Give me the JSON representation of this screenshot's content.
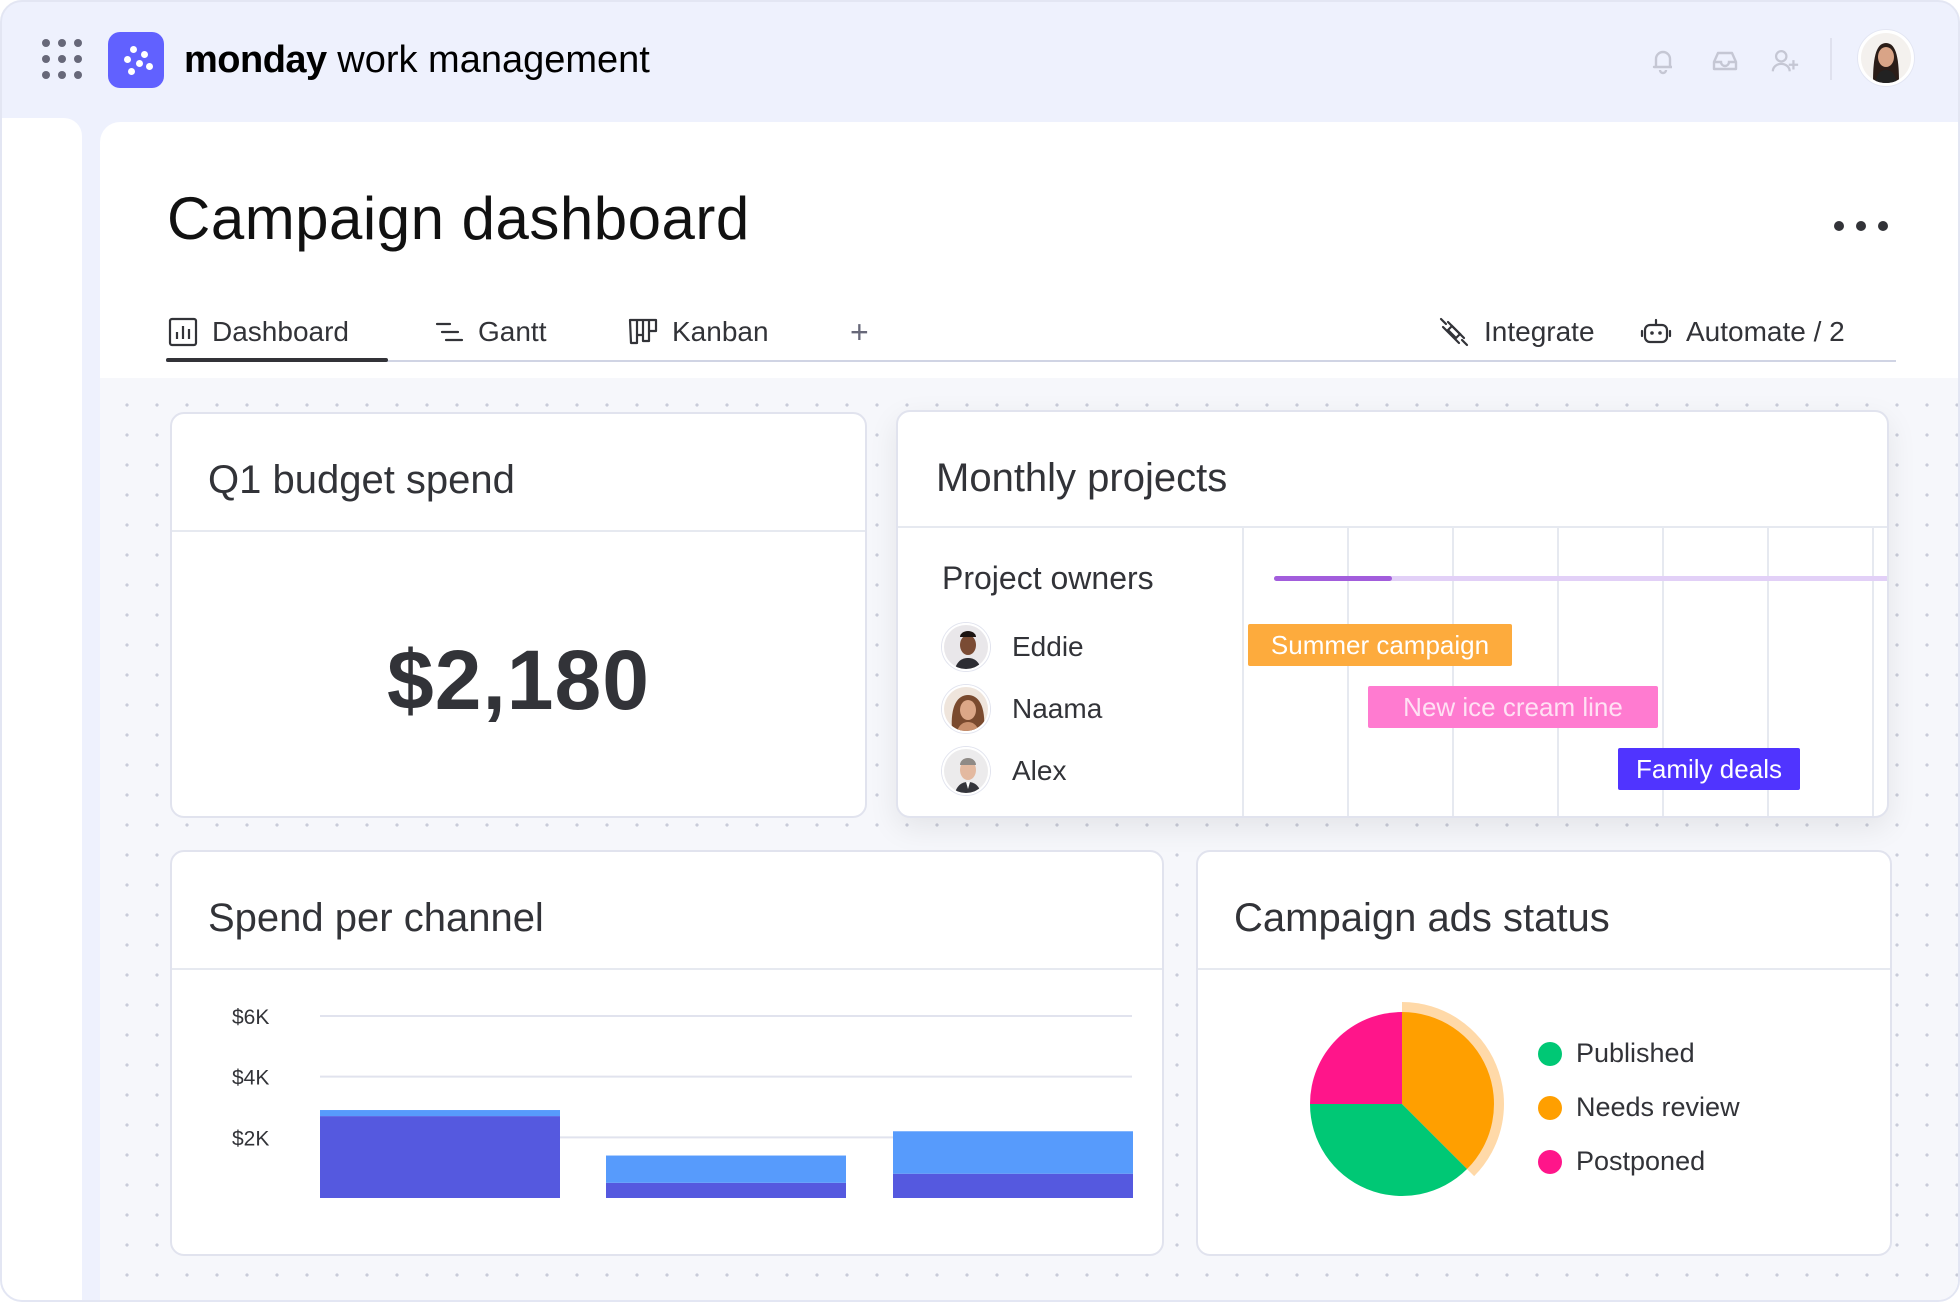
{
  "app": {
    "brand_bold": "monday",
    "brand_rest": " work management",
    "accent": "#6161ff"
  },
  "header": {
    "icons": [
      "notifications-bell-icon",
      "inbox-icon",
      "invite-user-icon"
    ]
  },
  "page": {
    "title": "Campaign dashboard",
    "tabs": [
      {
        "label": "Dashboard",
        "icon": "dashboard-icon",
        "active": true
      },
      {
        "label": "Gantt",
        "icon": "gantt-icon",
        "active": false
      },
      {
        "label": "Kanban",
        "icon": "kanban-icon",
        "active": false
      }
    ],
    "add_tab": "+",
    "actions": [
      {
        "label": "Integrate",
        "icon": "integrate-icon"
      },
      {
        "label": "Automate / 2",
        "icon": "automate-icon"
      }
    ]
  },
  "widgets": {
    "budget": {
      "title": "Q1 budget spend",
      "value": "$2,180"
    },
    "projects": {
      "title": "Monthly projects",
      "owners_title": "Project owners",
      "owners": [
        {
          "name": "Eddie",
          "project": "Summer campaign",
          "color": "#fdab3d",
          "text_color": "#ffffff"
        },
        {
          "name": "Naama",
          "project": "New ice cream line",
          "color": "#ff7bd0",
          "text_color": "#ffe1f4"
        },
        {
          "name": "Alex",
          "project": "Family deals",
          "color": "#5034ff",
          "text_color": "#ffffff"
        }
      ],
      "timeline_progress": 0.19
    },
    "channel": {
      "title": "Spend per channel"
    },
    "status": {
      "title": "Campaign ads status",
      "legend": [
        {
          "label": "Published",
          "color": "#00c875"
        },
        {
          "label": "Needs review",
          "color": "#ff9f00"
        },
        {
          "label": "Postponed",
          "color": "#ff158a"
        }
      ]
    }
  },
  "chart_data": [
    {
      "type": "bar",
      "stacked": true,
      "categories": [
        "",
        "",
        ""
      ],
      "series": [
        {
          "values": [
            2700,
            500,
            800
          ],
          "color": "#5559df"
        },
        {
          "values": [
            200,
            900,
            1400
          ],
          "color": "#579bfc"
        }
      ],
      "yticks": [
        "$2K",
        "$4K",
        "$6K"
      ],
      "ytick_values": [
        2000,
        4000,
        6000
      ],
      "ylim": [
        0,
        6000
      ],
      "grid": true
    },
    {
      "type": "pie",
      "labels": [
        "Published",
        "Needs review",
        "Postponed"
      ],
      "values": [
        37.5,
        37.5,
        25
      ],
      "colors": [
        "#00c875",
        "#ff9f00",
        "#ff158a"
      ],
      "highlighted": "Needs review"
    }
  ]
}
